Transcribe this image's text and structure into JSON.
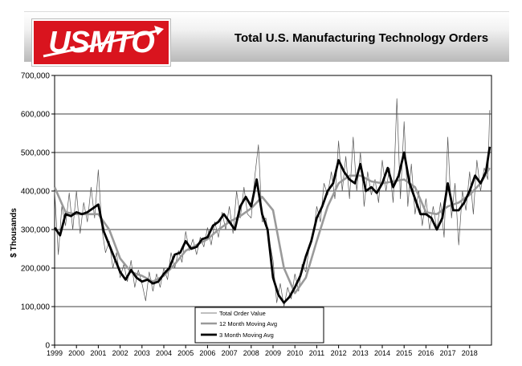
{
  "header": {
    "logo_text": "USMTO",
    "title": "Total U.S. Manufacturing Technology Orders"
  },
  "colors": {
    "brand_red": "#d9141e",
    "avg12": "#9a9a9a",
    "avg3": "#000000",
    "total": "#555555"
  },
  "chart_data": {
    "type": "line",
    "title": "Total U.S. Manufacturing Technology Orders",
    "xlabel": "",
    "ylabel": "$ Thousands",
    "xlim": [
      1999,
      2019
    ],
    "ylim": [
      0,
      700000
    ],
    "y_ticks": [
      0,
      100000,
      200000,
      300000,
      400000,
      500000,
      600000,
      700000
    ],
    "y_tick_labels": [
      "0",
      "100,000",
      "200,000",
      "300,000",
      "400,000",
      "500,000",
      "600,000",
      "700,000"
    ],
    "x_ticks": [
      1999,
      2000,
      2001,
      2002,
      2003,
      2004,
      2005,
      2006,
      2007,
      2008,
      2009,
      2010,
      2011,
      2012,
      2013,
      2014,
      2015,
      2016,
      2017,
      2018
    ],
    "x_tick_labels": [
      "1999",
      "2000",
      "2001",
      "2002",
      "2003",
      "2004",
      "2005",
      "2006",
      "2007",
      "2008",
      "2009",
      "2010",
      "2011",
      "2012",
      "2013",
      "2014",
      "2015",
      "2016",
      "2017",
      "2018"
    ],
    "grid": "horizontal",
    "legend_position": "bottom-center",
    "legend": [
      "Total Order Value",
      "12 Month Moving Avg",
      "3 Month Moving Avg"
    ],
    "series": [
      {
        "name": "3 Month Moving Avg",
        "x": [
          1999.0,
          1999.25,
          1999.5,
          1999.75,
          2000.0,
          2000.25,
          2000.5,
          2000.75,
          2001.0,
          2001.25,
          2001.5,
          2001.75,
          2002.0,
          2002.25,
          2002.5,
          2002.75,
          2003.0,
          2003.25,
          2003.5,
          2003.75,
          2004.0,
          2004.25,
          2004.5,
          2004.75,
          2005.0,
          2005.25,
          2005.5,
          2005.75,
          2006.0,
          2006.25,
          2006.5,
          2006.75,
          2007.0,
          2007.25,
          2007.5,
          2007.75,
          2008.0,
          2008.25,
          2008.5,
          2008.75,
          2009.0,
          2009.25,
          2009.5,
          2009.75,
          2010.0,
          2010.25,
          2010.5,
          2010.75,
          2011.0,
          2011.25,
          2011.5,
          2011.75,
          2012.0,
          2012.25,
          2012.5,
          2012.75,
          2013.0,
          2013.25,
          2013.5,
          2013.75,
          2014.0,
          2014.25,
          2014.5,
          2014.75,
          2015.0,
          2015.25,
          2015.5,
          2015.75,
          2016.0,
          2016.25,
          2016.5,
          2016.75,
          2017.0,
          2017.25,
          2017.5,
          2017.75,
          2018.0,
          2018.25,
          2018.5,
          2018.75,
          2018.92
        ],
        "values": [
          305000,
          285000,
          340000,
          335000,
          345000,
          340000,
          345000,
          355000,
          365000,
          295000,
          260000,
          225000,
          190000,
          170000,
          195000,
          175000,
          165000,
          170000,
          160000,
          165000,
          185000,
          200000,
          235000,
          240000,
          270000,
          250000,
          255000,
          275000,
          280000,
          310000,
          320000,
          340000,
          320000,
          300000,
          360000,
          385000,
          360000,
          430000,
          340000,
          300000,
          175000,
          130000,
          110000,
          125000,
          150000,
          180000,
          230000,
          270000,
          330000,
          360000,
          400000,
          420000,
          480000,
          450000,
          430000,
          420000,
          470000,
          400000,
          410000,
          395000,
          420000,
          460000,
          410000,
          440000,
          500000,
          420000,
          380000,
          340000,
          340000,
          330000,
          300000,
          330000,
          420000,
          350000,
          350000,
          370000,
          400000,
          440000,
          420000,
          450000,
          515000
        ]
      },
      {
        "name": "12 Month Moving Avg",
        "x": [
          1999.0,
          1999.5,
          2000.0,
          2000.5,
          2001.0,
          2001.5,
          2002.0,
          2002.5,
          2003.0,
          2003.5,
          2004.0,
          2004.5,
          2005.0,
          2005.5,
          2006.0,
          2006.5,
          2007.0,
          2007.5,
          2008.0,
          2008.5,
          2009.0,
          2009.5,
          2010.0,
          2010.5,
          2011.0,
          2011.5,
          2012.0,
          2012.5,
          2013.0,
          2013.5,
          2014.0,
          2014.5,
          2015.0,
          2015.5,
          2016.0,
          2016.5,
          2017.0,
          2017.5,
          2018.0,
          2018.5,
          2018.92
        ],
        "values": [
          410000,
          345000,
          340000,
          340000,
          340000,
          300000,
          225000,
          190000,
          180000,
          165000,
          180000,
          210000,
          245000,
          260000,
          275000,
          300000,
          320000,
          335000,
          355000,
          385000,
          350000,
          200000,
          135000,
          175000,
          270000,
          360000,
          420000,
          440000,
          440000,
          425000,
          420000,
          425000,
          430000,
          410000,
          345000,
          340000,
          360000,
          370000,
          390000,
          420000,
          460000
        ]
      },
      {
        "name": "Total Order Value",
        "x": [
          1999.0,
          1999.17,
          1999.33,
          1999.5,
          1999.67,
          1999.83,
          2000.0,
          2000.17,
          2000.33,
          2000.5,
          2000.67,
          2000.83,
          2001.0,
          2001.17,
          2001.33,
          2001.5,
          2001.67,
          2001.83,
          2002.0,
          2002.17,
          2002.33,
          2002.5,
          2002.67,
          2002.83,
          2003.0,
          2003.17,
          2003.33,
          2003.5,
          2003.67,
          2003.83,
          2004.0,
          2004.17,
          2004.33,
          2004.5,
          2004.67,
          2004.83,
          2005.0,
          2005.17,
          2005.33,
          2005.5,
          2005.67,
          2005.83,
          2006.0,
          2006.17,
          2006.33,
          2006.5,
          2006.67,
          2006.83,
          2007.0,
          2007.17,
          2007.33,
          2007.5,
          2007.67,
          2007.83,
          2008.0,
          2008.17,
          2008.33,
          2008.5,
          2008.67,
          2008.83,
          2009.0,
          2009.17,
          2009.33,
          2009.5,
          2009.67,
          2009.83,
          2010.0,
          2010.17,
          2010.33,
          2010.5,
          2010.67,
          2010.83,
          2011.0,
          2011.17,
          2011.33,
          2011.5,
          2011.67,
          2011.83,
          2012.0,
          2012.17,
          2012.33,
          2012.5,
          2012.67,
          2012.83,
          2013.0,
          2013.17,
          2013.33,
          2013.5,
          2013.67,
          2013.83,
          2014.0,
          2014.17,
          2014.33,
          2014.5,
          2014.67,
          2014.83,
          2015.0,
          2015.17,
          2015.33,
          2015.5,
          2015.67,
          2015.83,
          2016.0,
          2016.17,
          2016.33,
          2016.5,
          2016.67,
          2016.83,
          2017.0,
          2017.17,
          2017.33,
          2017.5,
          2017.67,
          2017.83,
          2018.0,
          2018.17,
          2018.33,
          2018.5,
          2018.67,
          2018.83,
          2018.92
        ],
        "values": [
          400000,
          235000,
          360000,
          310000,
          395000,
          300000,
          400000,
          290000,
          370000,
          320000,
          410000,
          330000,
          455000,
          300000,
          240000,
          270000,
          200000,
          240000,
          175000,
          210000,
          165000,
          220000,
          150000,
          195000,
          160000,
          115000,
          190000,
          140000,
          185000,
          150000,
          200000,
          170000,
          240000,
          200000,
          245000,
          215000,
          295000,
          245000,
          275000,
          235000,
          280000,
          255000,
          305000,
          260000,
          320000,
          280000,
          345000,
          300000,
          360000,
          290000,
          400000,
          330000,
          410000,
          340000,
          330000,
          440000,
          520000,
          320000,
          330000,
          270000,
          220000,
          110000,
          160000,
          100000,
          150000,
          120000,
          185000,
          140000,
          210000,
          190000,
          260000,
          280000,
          360000,
          320000,
          420000,
          390000,
          450000,
          380000,
          530000,
          400000,
          490000,
          380000,
          540000,
          400000,
          500000,
          360000,
          450000,
          390000,
          430000,
          370000,
          480000,
          400000,
          460000,
          370000,
          640000,
          380000,
          580000,
          360000,
          470000,
          340000,
          400000,
          310000,
          380000,
          300000,
          360000,
          300000,
          370000,
          280000,
          540000,
          330000,
          420000,
          260000,
          400000,
          350000,
          450000,
          340000,
          480000,
          400000,
          460000,
          430000,
          610000
        ]
      }
    ]
  }
}
